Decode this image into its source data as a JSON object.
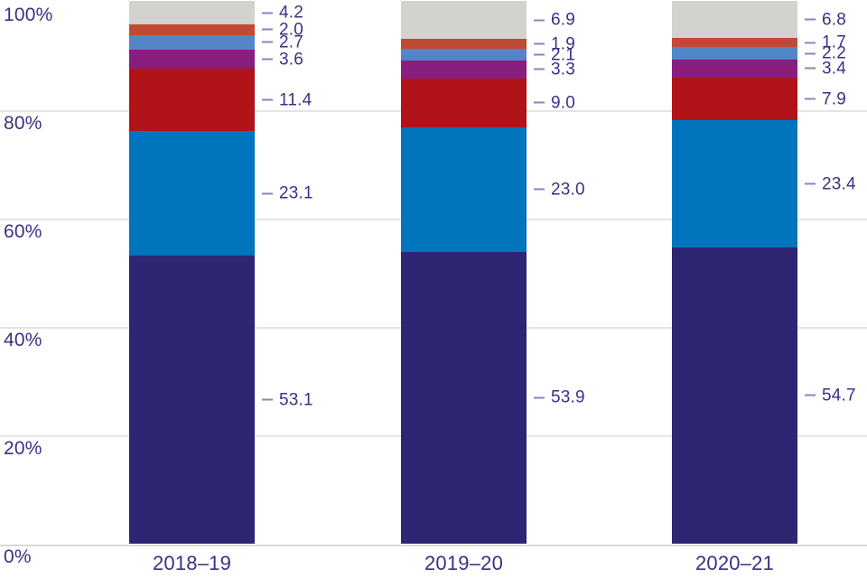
{
  "chart_data": {
    "type": "bar",
    "stacked": true,
    "percent_stacked": true,
    "title": "",
    "xlabel": "",
    "ylabel": "",
    "categories": [
      "2018–19",
      "2019–20",
      "2020–21"
    ],
    "series": [
      {
        "color": "#2e2573",
        "values": [
          53.1,
          53.9,
          54.7
        ]
      },
      {
        "color": "#0074bc",
        "values": [
          23.1,
          23.0,
          23.4
        ]
      },
      {
        "color": "#b11418",
        "values": [
          11.4,
          9.0,
          7.9
        ]
      },
      {
        "color": "#8a1e7e",
        "values": [
          3.6,
          3.3,
          3.4
        ]
      },
      {
        "color": "#5386c6",
        "values": [
          2.7,
          2.1,
          2.2
        ]
      },
      {
        "color": "#c14a34",
        "values": [
          2.0,
          1.9,
          1.7
        ]
      },
      {
        "color": "#d3d2cf",
        "values": [
          4.2,
          6.9,
          6.8
        ]
      }
    ],
    "y_ticks": [
      {
        "value": 0,
        "label": "0%"
      },
      {
        "value": 20,
        "label": "20%"
      },
      {
        "value": 40,
        "label": "40%"
      },
      {
        "value": 60,
        "label": "60%"
      },
      {
        "value": 80,
        "label": "80%"
      },
      {
        "value": 100,
        "label": "100%"
      }
    ],
    "ylim": [
      0,
      100
    ],
    "grid": "horizontal",
    "legend_position": "none",
    "value_label_decimals": 1
  },
  "colors": {
    "axis_text": "#3a3183",
    "value_text": "#3a3183",
    "tick_dash": "#8c84b8",
    "gridline": "#e4e4e2",
    "baseline": "#d9d9d7",
    "background": "#ffffff"
  }
}
